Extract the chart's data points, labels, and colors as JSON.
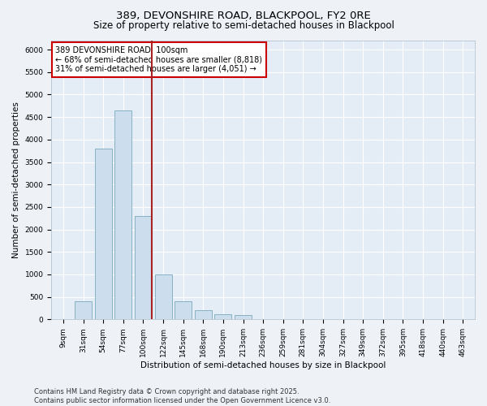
{
  "title1": "389, DEVONSHIRE ROAD, BLACKPOOL, FY2 0RE",
  "title2": "Size of property relative to semi-detached houses in Blackpool",
  "xlabel": "Distribution of semi-detached houses by size in Blackpool",
  "ylabel": "Number of semi-detached properties",
  "categories": [
    "9sqm",
    "31sqm",
    "54sqm",
    "77sqm",
    "100sqm",
    "122sqm",
    "145sqm",
    "168sqm",
    "190sqm",
    "213sqm",
    "236sqm",
    "259sqm",
    "281sqm",
    "304sqm",
    "327sqm",
    "349sqm",
    "372sqm",
    "395sqm",
    "418sqm",
    "440sqm",
    "463sqm"
  ],
  "values": [
    5,
    400,
    3800,
    4650,
    2300,
    1000,
    400,
    200,
    110,
    100,
    0,
    0,
    0,
    0,
    0,
    0,
    0,
    0,
    0,
    0,
    0
  ],
  "bar_color": "#ccdded",
  "bar_edge_color": "#7aaabb",
  "highlight_index": 4,
  "vline_color": "#aa2222",
  "annotation_text": "389 DEVONSHIRE ROAD: 100sqm\n← 68% of semi-detached houses are smaller (8,818)\n31% of semi-detached houses are larger (4,051) →",
  "annotation_box_color": "white",
  "annotation_box_edge": "#cc0000",
  "ylim": [
    0,
    6200
  ],
  "yticks": [
    0,
    500,
    1000,
    1500,
    2000,
    2500,
    3000,
    3500,
    4000,
    4500,
    5000,
    5500,
    6000
  ],
  "footer": "Contains HM Land Registry data © Crown copyright and database right 2025.\nContains public sector information licensed under the Open Government Licence v3.0.",
  "bg_color": "#eef2f7",
  "plot_bg_color": "#e4edf6",
  "grid_color": "#ffffff",
  "title_fontsize": 9.5,
  "subtitle_fontsize": 8.5,
  "axis_label_fontsize": 7.5,
  "tick_fontsize": 6.5,
  "annotation_fontsize": 7,
  "footer_fontsize": 6
}
